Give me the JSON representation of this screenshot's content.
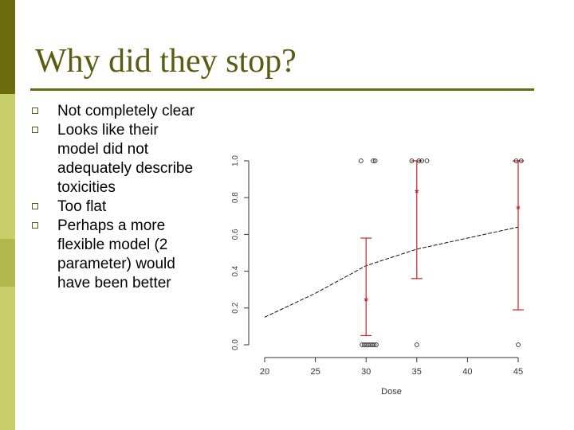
{
  "slide": {
    "title": "Why did they stop?",
    "bullets": [
      "Not completely clear",
      "Looks like their model did not adequately describe toxicities",
      "Too flat",
      "Perhaps a more flexible model (2 parameter) would have been better"
    ],
    "bullet_lines": [
      [
        "Not completely clear"
      ],
      [
        "Looks like their",
        "model did not",
        "adequately describe",
        "toxicities"
      ],
      [
        "Too flat"
      ],
      [
        "Perhaps a more",
        "flexible model (2",
        "parameter) would",
        "have been better"
      ]
    ]
  },
  "chart_data": {
    "type": "scatter",
    "xlabel": "Dose",
    "ylabel": "",
    "xlim": [
      20,
      45
    ],
    "ylim": [
      0,
      1
    ],
    "xticks": [
      20,
      25,
      30,
      35,
      40,
      45
    ],
    "yticks": [
      "0.0",
      "0.2",
      "0.4",
      "0.6",
      "0.8",
      "1.0"
    ],
    "observations": [
      {
        "x": 29.6,
        "y": 0
      },
      {
        "x": 29.8,
        "y": 0
      },
      {
        "x": 30.0,
        "y": 0
      },
      {
        "x": 30.2,
        "y": 0
      },
      {
        "x": 30.4,
        "y": 0
      },
      {
        "x": 30.6,
        "y": 0
      },
      {
        "x": 30.8,
        "y": 0
      },
      {
        "x": 31.0,
        "y": 0
      },
      {
        "x": 35.0,
        "y": 0
      },
      {
        "x": 45.0,
        "y": 0
      },
      {
        "x": 29.5,
        "y": 1
      },
      {
        "x": 30.7,
        "y": 1
      },
      {
        "x": 30.9,
        "y": 1
      },
      {
        "x": 34.5,
        "y": 1
      },
      {
        "x": 35.2,
        "y": 1
      },
      {
        "x": 35.5,
        "y": 1
      },
      {
        "x": 36.0,
        "y": 1
      },
      {
        "x": 44.8,
        "y": 1
      },
      {
        "x": 45.3,
        "y": 1
      }
    ],
    "estimates": [
      {
        "x": 30,
        "y": 0.24,
        "lower": 0.05,
        "upper": 0.58
      },
      {
        "x": 35,
        "y": 0.83,
        "lower": 0.36,
        "upper": 1.0
      },
      {
        "x": 45,
        "y": 0.74,
        "lower": 0.19,
        "upper": 1.0
      }
    ],
    "curve": [
      {
        "x": 20,
        "y": 0.15
      },
      {
        "x": 25,
        "y": 0.28
      },
      {
        "x": 30,
        "y": 0.43
      },
      {
        "x": 35,
        "y": 0.52
      },
      {
        "x": 40,
        "y": 0.58
      },
      {
        "x": 45,
        "y": 0.64
      }
    ],
    "colors": {
      "estimate": "#cc2222",
      "curve": "#111111",
      "points": "#222222",
      "axis": "#333333"
    }
  }
}
